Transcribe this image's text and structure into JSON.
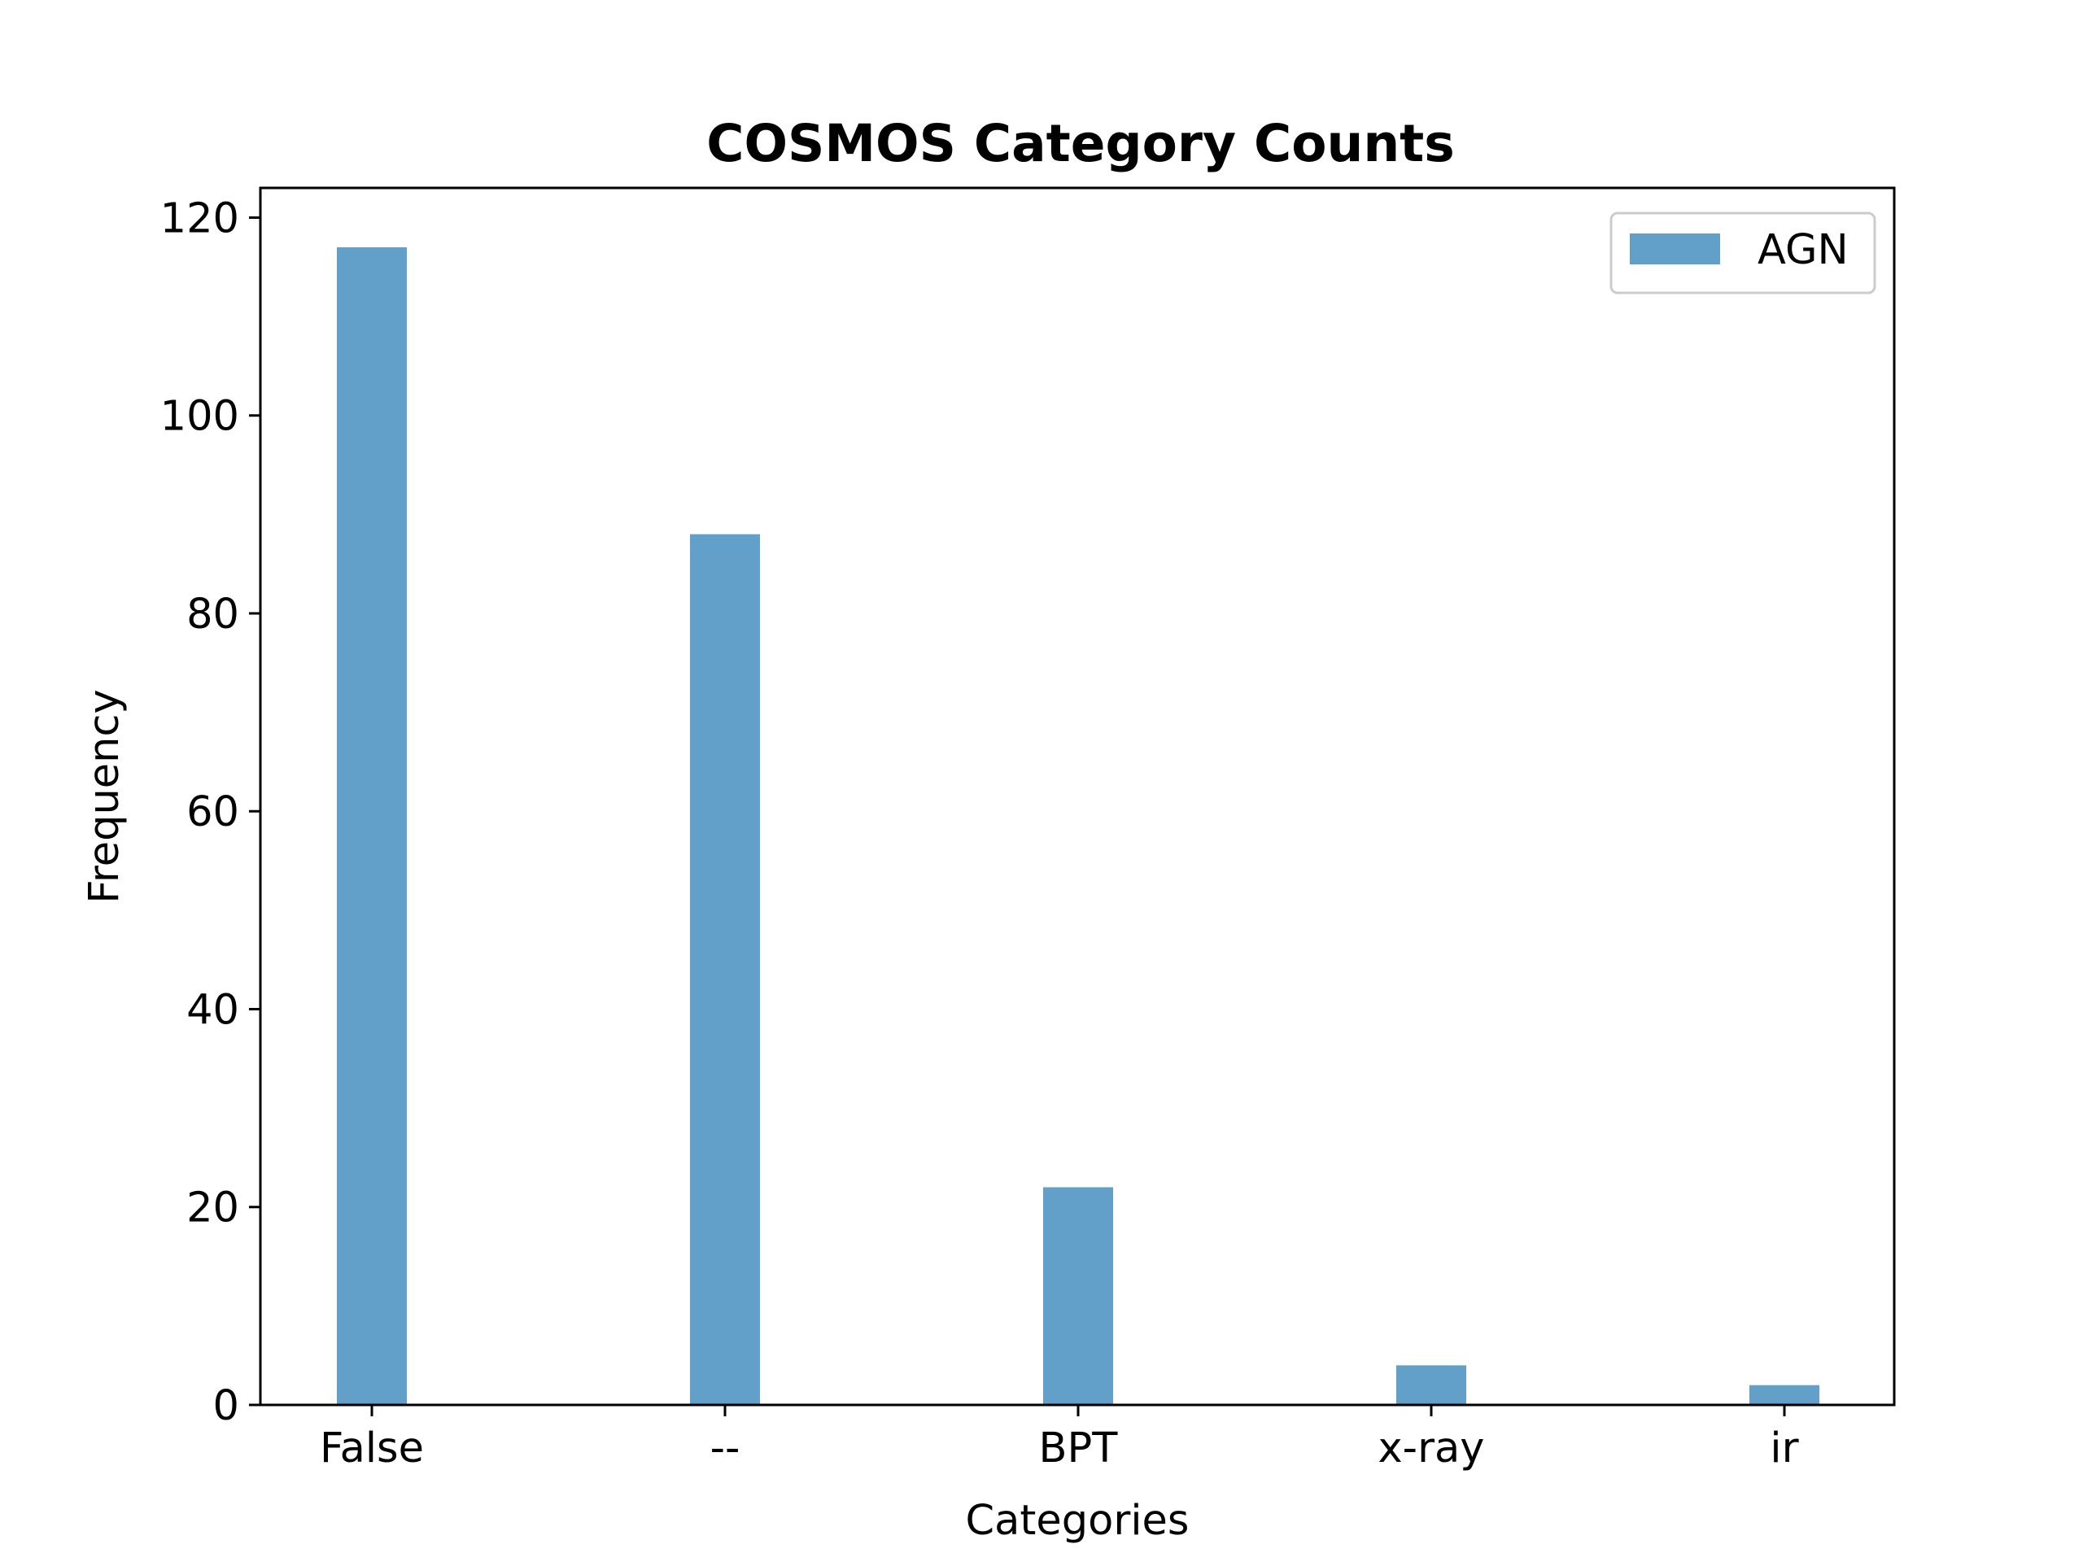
{
  "chart_data": {
    "type": "bar",
    "title": "COSMOS Category Counts",
    "xlabel": "Categories",
    "ylabel": "Frequency",
    "categories": [
      "False",
      "--",
      "BPT",
      "x-ray",
      "ir"
    ],
    "series": [
      {
        "name": "AGN",
        "values": [
          117,
          88,
          22,
          4,
          2
        ],
        "color": "#62a0ca"
      }
    ],
    "ylim": [
      0,
      123
    ],
    "yticks": [
      0,
      20,
      40,
      60,
      80,
      100,
      120
    ],
    "grid": false,
    "legend_position": "top-right"
  }
}
